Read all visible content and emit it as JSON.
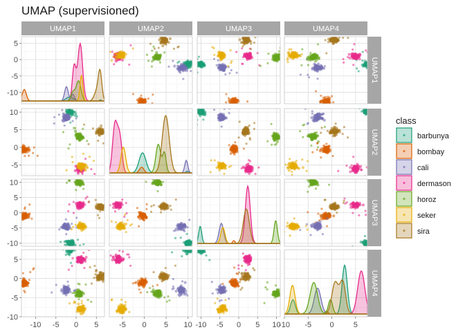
{
  "chart_data": {
    "type": "scatter-matrix",
    "title": "UMAP (supervisioned)",
    "variables": [
      "UMAP1",
      "UMAP2",
      "UMAP3",
      "UMAP4"
    ],
    "ranges": {
      "UMAP1": [
        -13.5,
        7
      ],
      "UMAP2": [
        -8,
        11
      ],
      "UMAP3": [
        -11,
        11
      ],
      "UMAP4": [
        -10,
        7.5
      ]
    },
    "ticks": {
      "UMAP1": [
        -10,
        -5,
        0,
        5
      ],
      "UMAP2": [
        -5,
        0,
        5,
        10
      ],
      "UMAP3": [
        -10,
        -5,
        0,
        5,
        10
      ],
      "UMAP4": [
        -10,
        -5,
        0,
        5
      ]
    },
    "tick_labels": {
      "UMAP1": [
        "-10",
        "-5",
        "0",
        "5"
      ],
      "UMAP2": [
        "-5",
        "0",
        "5",
        "10"
      ],
      "UMAP3": [
        "-10",
        "-5",
        "0",
        "5",
        "10"
      ],
      "UMAP4": [
        "-10",
        "-5",
        "0",
        "5"
      ]
    },
    "legend": {
      "title": "class",
      "position": "right",
      "entries": [
        "barbunya",
        "bombay",
        "cali",
        "dermason",
        "horoz",
        "seker",
        "sira"
      ]
    },
    "colors": {
      "barbunya": "#1b9e77",
      "bombay": "#d95f02",
      "cali": "#7570b3",
      "dermason": "#e7298a",
      "horoz": "#66a61e",
      "seker": "#e6ab02",
      "sira": "#a6761d"
    },
    "clusters": {
      "barbunya": [
        -1.5,
        10,
        -10,
        7.5
      ],
      "bombay": [
        -12.8,
        -0.5,
        -1.2,
        -1.2
      ],
      "cali": [
        -2.5,
        8.5,
        -4.5,
        -3.0
      ],
      "dermason": [
        1.0,
        -6.0,
        2.5,
        5.0
      ],
      "horoz": [
        0.7,
        3.0,
        10.0,
        -4.0
      ],
      "seker": [
        1.3,
        -5.3,
        -4.5,
        -8.0
      ],
      "sira": [
        6.0,
        4.5,
        2.0,
        0.5
      ]
    },
    "densities": {
      "UMAP1": [
        {
          "class": "barbunya",
          "peaks": [
            [
              -1.6,
              0.9,
              0.07
            ],
            [
              6.0,
              0.2,
              0.02
            ]
          ]
        },
        {
          "class": "bombay",
          "peaks": [
            [
              -12.8,
              0.5,
              0.2
            ]
          ]
        },
        {
          "class": "cali",
          "peaks": [
            [
              -2.4,
              0.45,
              0.25
            ],
            [
              -0.8,
              0.4,
              0.12
            ]
          ]
        },
        {
          "class": "dermason",
          "peaks": [
            [
              1.0,
              0.6,
              1.0
            ],
            [
              -0.5,
              0.45,
              0.6
            ]
          ]
        },
        {
          "class": "horoz",
          "peaks": [
            [
              0.6,
              0.6,
              0.35
            ],
            [
              -0.8,
              0.5,
              0.15
            ]
          ]
        },
        {
          "class": "seker",
          "peaks": [
            [
              1.3,
              0.35,
              0.45
            ]
          ]
        },
        {
          "class": "sira",
          "peaks": [
            [
              5.9,
              0.45,
              0.5
            ],
            [
              5.0,
              0.6,
              0.15
            ]
          ]
        }
      ],
      "UMAP2": [
        {
          "class": "barbunya",
          "peaks": [
            [
              -0.4,
              0.8,
              0.35
            ],
            [
              9.8,
              0.3,
              0.03
            ]
          ]
        },
        {
          "class": "bombay",
          "peaks": [
            [
              -0.6,
              0.5,
              0.1
            ]
          ]
        },
        {
          "class": "cali",
          "peaks": [
            [
              9.6,
              0.35,
              0.22
            ]
          ]
        },
        {
          "class": "dermason",
          "peaks": [
            [
              -6.7,
              0.55,
              0.85
            ],
            [
              -5.6,
              0.5,
              0.6
            ]
          ]
        },
        {
          "class": "horoz",
          "peaks": [
            [
              3.2,
              0.55,
              0.5
            ],
            [
              4.6,
              0.4,
              0.35
            ]
          ]
        },
        {
          "class": "seker",
          "peaks": [
            [
              -4.8,
              0.55,
              0.45
            ]
          ]
        },
        {
          "class": "sira",
          "peaks": [
            [
              4.9,
              0.8,
              1.0
            ]
          ]
        }
      ],
      "UMAP3": [
        {
          "class": "barbunya",
          "peaks": [
            [
              -10.2,
              0.4,
              0.3
            ]
          ]
        },
        {
          "class": "bombay",
          "peaks": [
            [
              -1.3,
              0.3,
              0.05
            ]
          ]
        },
        {
          "class": "cali",
          "peaks": [
            [
              -4.6,
              0.6,
              0.35
            ]
          ]
        },
        {
          "class": "dermason",
          "peaks": [
            [
              2.4,
              0.65,
              1.0
            ]
          ]
        },
        {
          "class": "horoz",
          "peaks": [
            [
              9.8,
              0.45,
              0.4
            ]
          ]
        },
        {
          "class": "seker",
          "peaks": [
            [
              -4.2,
              0.55,
              0.28
            ]
          ]
        },
        {
          "class": "sira",
          "peaks": [
            [
              2.0,
              0.8,
              0.6
            ]
          ]
        }
      ],
      "UMAP4": [
        {
          "class": "barbunya",
          "peaks": [
            [
              -8.2,
              0.5,
              0.25
            ],
            [
              2.7,
              0.55,
              0.85
            ]
          ]
        },
        {
          "class": "bombay",
          "peaks": [
            [
              -1.1,
              0.3,
              0.05
            ]
          ]
        },
        {
          "class": "cali",
          "peaks": [
            [
              -3.0,
              0.7,
              0.45
            ]
          ]
        },
        {
          "class": "dermason",
          "peaks": [
            [
              6.2,
              0.75,
              0.75
            ]
          ]
        },
        {
          "class": "horoz",
          "peaks": [
            [
              -3.8,
              0.8,
              0.55
            ],
            [
              -0.3,
              0.45,
              0.25
            ]
          ]
        },
        {
          "class": "seker",
          "peaks": [
            [
              -8.3,
              0.55,
              0.5
            ]
          ]
        },
        {
          "class": "sira",
          "peaks": [
            [
              0.7,
              0.7,
              0.55
            ],
            [
              2.3,
              0.6,
              0.55
            ]
          ]
        }
      ]
    }
  }
}
